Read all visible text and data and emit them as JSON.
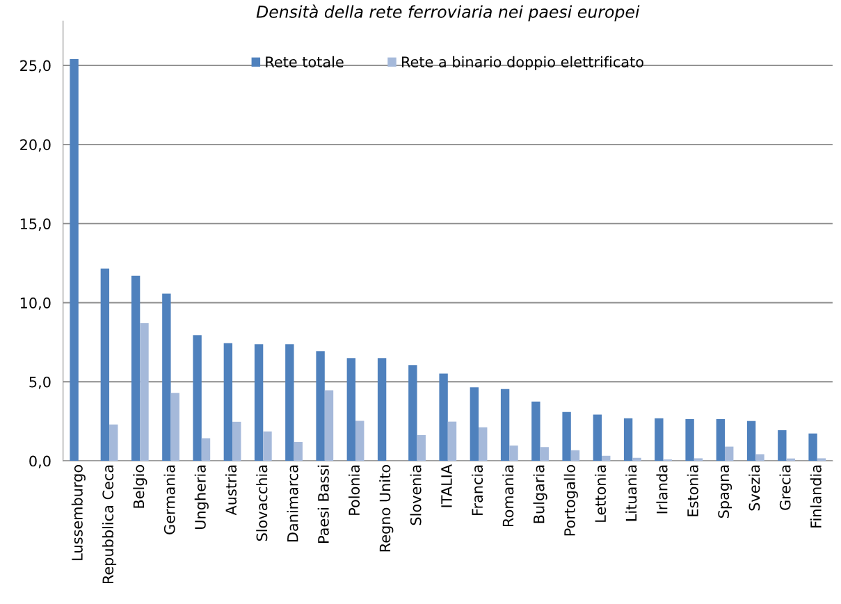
{
  "chart_data": {
    "type": "bar",
    "title": "Densità della rete ferroviaria nei paesi europei",
    "categories": [
      "Lussemburgo",
      "Repubblica Ceca",
      "Belgio",
      "Germania",
      "Ungheria",
      "Austria",
      "Slovacchia",
      "Danimarca",
      "Paesi Bassi",
      "Polonia",
      "Regno Unito",
      "Slovenia",
      "ITALIA",
      "Francia",
      "Romania",
      "Bulgaria",
      "Portogallo",
      "Lettonia",
      "Lituania",
      "Irlanda",
      "Estonia",
      "Spagna",
      "Svezia",
      "Grecia",
      "Finlandia"
    ],
    "series": [
      {
        "name": "Rete totale",
        "color": "#4f81bd",
        "values": [
          25.4,
          12.15,
          11.7,
          10.57,
          7.95,
          7.44,
          7.37,
          7.37,
          6.93,
          6.5,
          6.49,
          6.05,
          5.52,
          4.65,
          4.54,
          3.75,
          3.09,
          2.92,
          2.69,
          2.69,
          2.64,
          2.64,
          2.52,
          1.94,
          1.73
        ]
      },
      {
        "name": "Rete a binario doppio elettrificato",
        "color": "#a5b9da",
        "values": [
          0,
          2.3,
          8.7,
          4.3,
          1.43,
          2.47,
          1.86,
          1.19,
          4.46,
          2.53,
          0,
          1.63,
          2.48,
          2.12,
          0.97,
          0.87,
          0.67,
          0.32,
          0.19,
          0.09,
          0.16,
          0.9,
          0.42,
          0.15,
          0.16
        ]
      }
    ],
    "ylim": [
      0,
      27.8
    ],
    "yticks": [
      {
        "value": 0,
        "label": "0,0"
      },
      {
        "value": 5,
        "label": "5,0"
      },
      {
        "value": 10,
        "label": "10,0"
      },
      {
        "value": 15,
        "label": "15,0"
      },
      {
        "value": 20,
        "label": "20,0"
      },
      {
        "value": 25,
        "label": "25,0"
      }
    ],
    "grid": "y",
    "legend": "top"
  }
}
